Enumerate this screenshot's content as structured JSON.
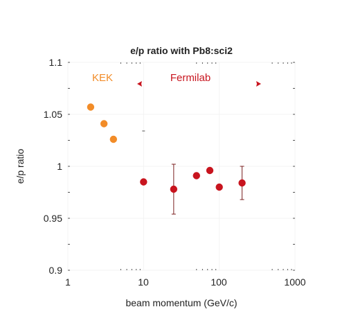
{
  "chart_data": {
    "type": "scatter",
    "title": "e/p ratio with Pb8:sci2",
    "xlabel": "beam momentum (GeV/c)",
    "ylabel": "e/p ratio",
    "xscale": "log",
    "xlim": [
      1,
      1000
    ],
    "ylim": [
      0.9,
      1.1
    ],
    "x_ticks": [
      1,
      10,
      100,
      1000
    ],
    "x_tick_labels": [
      "1",
      "10",
      "100",
      "1000"
    ],
    "y_ticks": [
      0.9,
      0.95,
      1,
      1.05,
      1.1
    ],
    "y_tick_labels": [
      "0.9",
      "0.95",
      "1",
      "1.05",
      "1.1"
    ],
    "grid": true,
    "series": [
      {
        "color": "#F28C28",
        "points": [
          {
            "x": 2,
            "y": 1.057,
            "err": 0.002
          },
          {
            "x": 3,
            "y": 1.041,
            "err": 0.002
          },
          {
            "x": 4,
            "y": 1.026,
            "err": 0.002
          }
        ]
      },
      {
        "color": "#C8141E",
        "points": [
          {
            "x": 10,
            "y": 0.985,
            "err": 0.002
          },
          {
            "x": 25,
            "y": 0.978,
            "err": 0.024
          },
          {
            "x": 50,
            "y": 0.991,
            "err": 0.002
          },
          {
            "x": 75,
            "y": 0.996,
            "err": 0.002
          },
          {
            "x": 100,
            "y": 0.98,
            "err": 0.002
          },
          {
            "x": 200,
            "y": 0.984,
            "err": 0.016
          }
        ]
      }
    ],
    "annotations": [
      {
        "text": "KEK",
        "color": "#F28C28"
      },
      {
        "text": "Fermilab",
        "color": "#C8141E"
      }
    ]
  }
}
